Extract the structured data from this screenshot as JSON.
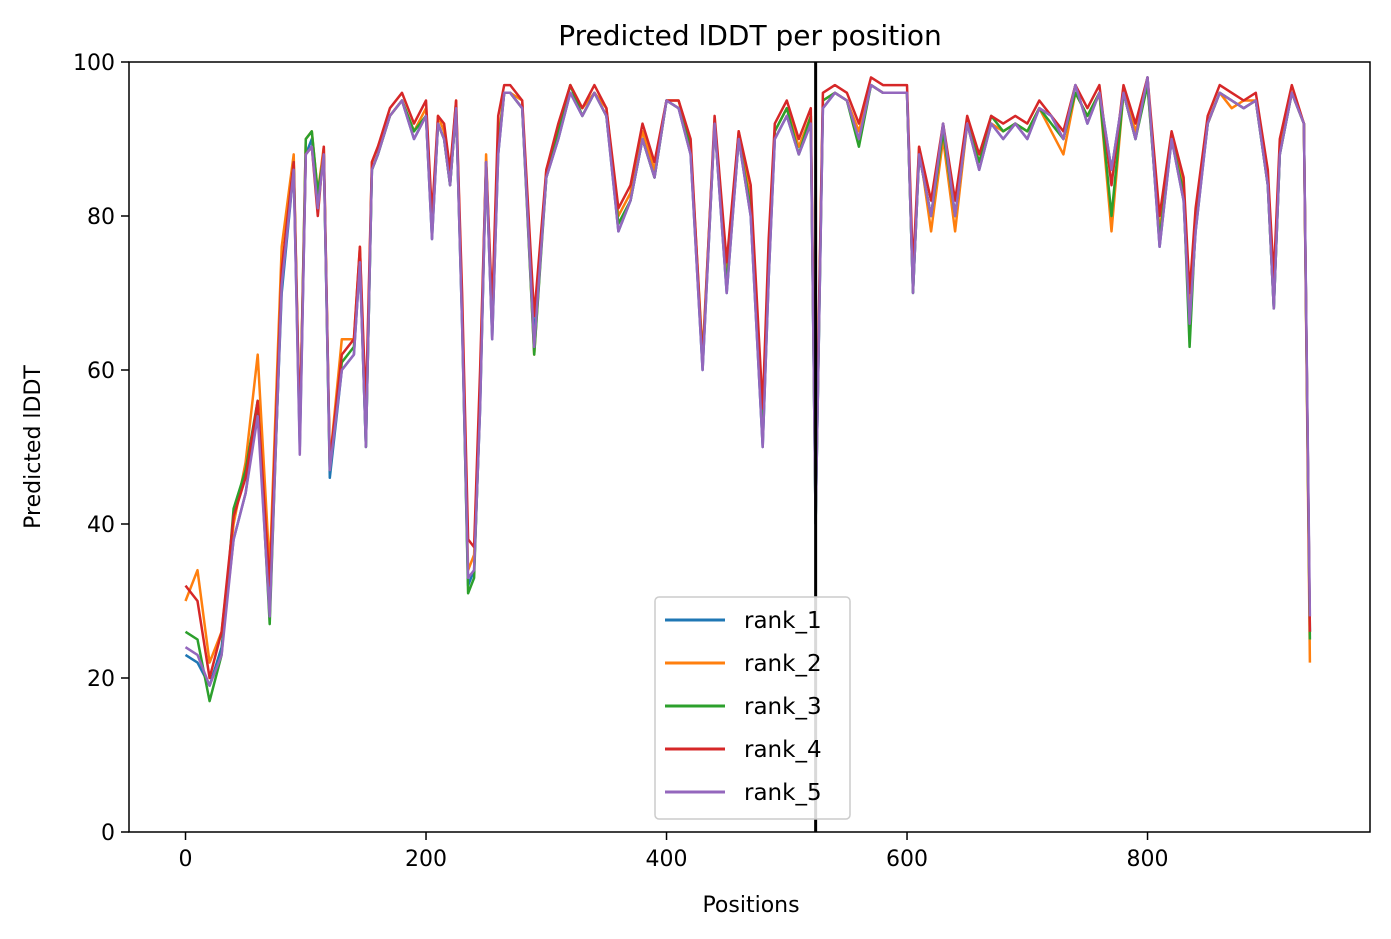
{
  "chart_data": {
    "type": "line",
    "title": "Predicted lDDT per position",
    "xlabel": "Positions",
    "ylabel": "Predicted lDDT",
    "xlim": [
      -47,
      985
    ],
    "ylim": [
      0,
      100
    ],
    "xticks": [
      0,
      200,
      400,
      600,
      800
    ],
    "yticks": [
      0,
      20,
      40,
      60,
      80,
      100
    ],
    "grid": false,
    "legend_position": "bottom-center",
    "vline_x": 524,
    "series": [
      {
        "name": "rank_1",
        "color": "#1f77b4"
      },
      {
        "name": "rank_2",
        "color": "#ff7f0e"
      },
      {
        "name": "rank_3",
        "color": "#2ca02c"
      },
      {
        "name": "rank_4",
        "color": "#d62728"
      },
      {
        "name": "rank_5",
        "color": "#9467bd"
      }
    ],
    "x": [
      0,
      10,
      20,
      30,
      40,
      50,
      60,
      70,
      80,
      90,
      95,
      100,
      105,
      110,
      115,
      120,
      130,
      140,
      145,
      150,
      155,
      160,
      170,
      180,
      190,
      200,
      205,
      210,
      215,
      220,
      225,
      230,
      235,
      240,
      245,
      250,
      255,
      260,
      265,
      270,
      280,
      290,
      300,
      310,
      320,
      330,
      340,
      350,
      360,
      370,
      380,
      390,
      400,
      410,
      420,
      430,
      440,
      450,
      460,
      470,
      480,
      485,
      490,
      500,
      510,
      520,
      524,
      530,
      540,
      550,
      560,
      570,
      580,
      590,
      600,
      605,
      610,
      620,
      630,
      640,
      650,
      660,
      670,
      680,
      690,
      700,
      710,
      720,
      730,
      740,
      750,
      760,
      770,
      780,
      790,
      800,
      810,
      820,
      830,
      835,
      840,
      850,
      860,
      870,
      880,
      890,
      900,
      905,
      910,
      920,
      930,
      935
    ],
    "rank_values": [
      [
        23,
        22,
        19,
        24,
        38,
        44,
        55,
        30,
        70,
        86,
        50,
        88,
        90,
        82,
        88,
        46,
        60,
        62,
        74,
        50,
        86,
        88,
        93,
        95,
        90,
        93,
        77,
        92,
        90,
        84,
        94,
        66,
        32,
        34,
        55,
        87,
        64,
        88,
        96,
        96,
        94,
        64,
        85,
        90,
        96,
        93,
        96,
        93,
        78,
        82,
        90,
        85,
        95,
        94,
        88,
        60,
        92,
        70,
        90,
        80,
        50,
        72,
        90,
        93,
        88,
        92,
        40,
        94,
        96,
        95,
        90,
        97,
        96,
        96,
        96,
        70,
        88,
        80,
        92,
        80,
        92,
        86,
        92,
        90,
        92,
        90,
        94,
        93,
        90,
        97,
        92,
        96,
        86,
        96,
        90,
        98,
        76,
        90,
        82,
        66,
        78,
        92,
        96,
        95,
        94,
        95,
        84,
        68,
        88,
        96,
        92,
        26
      ],
      [
        30,
        34,
        22,
        26,
        40,
        48,
        62,
        34,
        76,
        88,
        52,
        90,
        91,
        83,
        89,
        48,
        64,
        64,
        76,
        52,
        87,
        89,
        93,
        95,
        91,
        94,
        78,
        93,
        91,
        85,
        95,
        68,
        34,
        36,
        57,
        88,
        66,
        90,
        96,
        96,
        95,
        62,
        86,
        91,
        97,
        94,
        96,
        94,
        80,
        83,
        91,
        86,
        95,
        95,
        89,
        62,
        92,
        72,
        91,
        82,
        52,
        74,
        91,
        94,
        89,
        93,
        42,
        95,
        96,
        95,
        91,
        97,
        96,
        96,
        96,
        71,
        89,
        78,
        90,
        78,
        92,
        87,
        92,
        91,
        92,
        91,
        94,
        91,
        88,
        96,
        93,
        96,
        78,
        96,
        91,
        97,
        78,
        90,
        84,
        68,
        80,
        92,
        96,
        94,
        95,
        95,
        85,
        70,
        89,
        96,
        92,
        22
      ],
      [
        26,
        25,
        17,
        23,
        42,
        47,
        56,
        27,
        72,
        87,
        51,
        90,
        91,
        83,
        88,
        47,
        61,
        63,
        75,
        50,
        86,
        88,
        93,
        95,
        91,
        93,
        78,
        92,
        90,
        84,
        94,
        67,
        31,
        33,
        56,
        87,
        65,
        89,
        96,
        96,
        94,
        62,
        85,
        91,
        97,
        93,
        96,
        93,
        79,
        82,
        90,
        85,
        95,
        94,
        89,
        61,
        92,
        71,
        90,
        81,
        51,
        73,
        91,
        94,
        88,
        93,
        40,
        95,
        96,
        95,
        89,
        97,
        96,
        96,
        96,
        70,
        88,
        80,
        91,
        80,
        92,
        87,
        93,
        91,
        92,
        91,
        94,
        92,
        90,
        96,
        93,
        96,
        80,
        96,
        90,
        97,
        77,
        90,
        83,
        63,
        79,
        92,
        96,
        95,
        94,
        95,
        84,
        68,
        88,
        96,
        92,
        25
      ],
      [
        32,
        30,
        20,
        26,
        41,
        46,
        56,
        32,
        73,
        87,
        52,
        88,
        89,
        80,
        89,
        48,
        62,
        64,
        76,
        55,
        87,
        89,
        94,
        96,
        92,
        95,
        80,
        93,
        92,
        86,
        95,
        70,
        38,
        37,
        60,
        87,
        68,
        93,
        97,
        97,
        95,
        67,
        86,
        92,
        97,
        94,
        97,
        94,
        81,
        84,
        92,
        87,
        95,
        95,
        90,
        61,
        93,
        74,
        91,
        84,
        55,
        77,
        92,
        95,
        90,
        94,
        44,
        96,
        97,
        96,
        92,
        98,
        97,
        97,
        97,
        73,
        89,
        82,
        92,
        82,
        93,
        88,
        93,
        92,
        93,
        92,
        95,
        93,
        91,
        97,
        94,
        97,
        84,
        97,
        92,
        98,
        80,
        91,
        85,
        70,
        81,
        93,
        97,
        96,
        95,
        96,
        86,
        72,
        90,
        97,
        92,
        26
      ],
      [
        24,
        23,
        19,
        23,
        38,
        44,
        54,
        28,
        71,
        86,
        49,
        88,
        89,
        81,
        88,
        47,
        60,
        62,
        74,
        50,
        86,
        88,
        93,
        95,
        90,
        93,
        77,
        92,
        90,
        84,
        94,
        66,
        33,
        34,
        55,
        87,
        64,
        88,
        96,
        96,
        94,
        63,
        85,
        90,
        96,
        93,
        96,
        93,
        78,
        82,
        90,
        85,
        95,
        94,
        88,
        60,
        92,
        70,
        90,
        80,
        50,
        72,
        90,
        93,
        88,
        92,
        40,
        94,
        96,
        95,
        90,
        97,
        96,
        96,
        96,
        70,
        88,
        80,
        92,
        80,
        92,
        86,
        92,
        90,
        92,
        90,
        94,
        93,
        90,
        97,
        92,
        96,
        86,
        96,
        90,
        98,
        76,
        90,
        82,
        66,
        78,
        92,
        96,
        95,
        94,
        95,
        84,
        68,
        88,
        96,
        92,
        28
      ]
    ]
  }
}
